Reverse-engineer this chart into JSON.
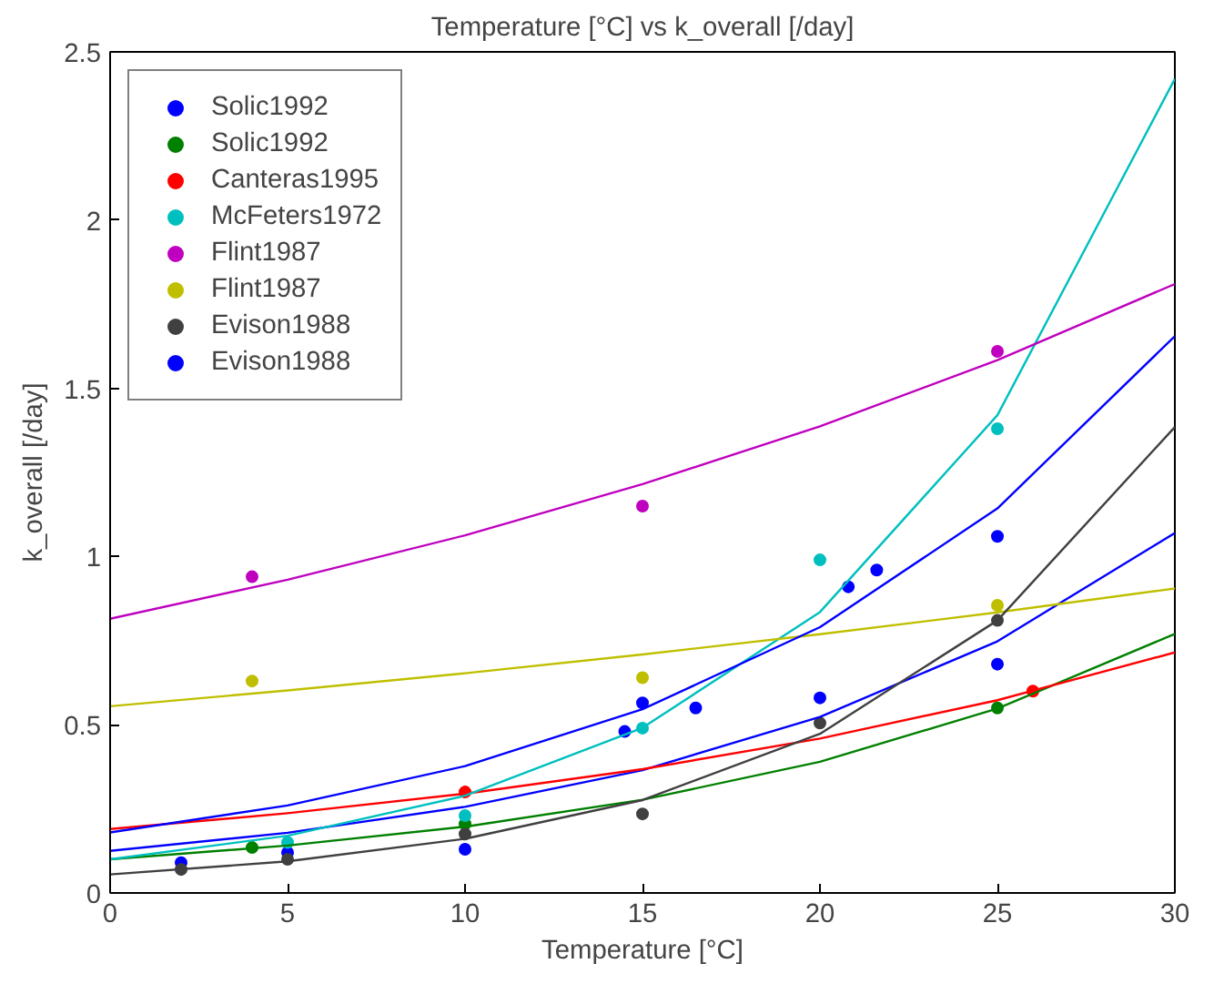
{
  "chart_data": {
    "type": "scatter",
    "title": "Temperature [°C] vs k_overall [/day]",
    "xlabel": "Temperature [°C]",
    "ylabel": "k_overall [/day]",
    "xlim": [
      0,
      30
    ],
    "ylim": [
      0,
      2.5
    ],
    "xticks": [
      0,
      5,
      10,
      15,
      20,
      25,
      30
    ],
    "yticks": [
      0,
      0.5,
      1,
      1.5,
      2,
      2.5
    ],
    "grid": false,
    "legend": "top left",
    "marker": "circle",
    "series": [
      {
        "name": "Solic1992",
        "color": "#0000ff",
        "x": [
          2,
          5,
          10,
          15,
          20,
          25
        ],
        "values": [
          0.09,
          0.12,
          0.13,
          0.565,
          0.58,
          0.68
        ]
      },
      {
        "name": "Solic1992",
        "color": "#008000",
        "x": [
          4,
          10,
          25
        ],
        "values": [
          0.135,
          0.205,
          0.55
        ]
      },
      {
        "name": "Canteras1995",
        "color": "#ff0000",
        "x": [
          10,
          26
        ],
        "values": [
          0.3,
          0.6
        ]
      },
      {
        "name": "McFeters1972",
        "color": "#00bfbf",
        "x": [
          5,
          10,
          15,
          20,
          25
        ],
        "values": [
          0.15,
          0.23,
          0.49,
          0.99,
          1.38
        ]
      },
      {
        "name": "Flint1987",
        "color": "#bf00bf",
        "x": [
          4,
          15,
          25
        ],
        "values": [
          0.94,
          1.15,
          1.61
        ]
      },
      {
        "name": "Flint1987",
        "color": "#bfbf00",
        "x": [
          4,
          15,
          25
        ],
        "values": [
          0.63,
          0.64,
          0.855
        ]
      },
      {
        "name": "Evison1988",
        "color": "#404040",
        "x": [
          2,
          5,
          10,
          15,
          20,
          25
        ],
        "values": [
          0.07,
          0.1,
          0.175,
          0.235,
          0.505,
          0.81
        ]
      },
      {
        "name": "Evison1988",
        "color": "#0000ff",
        "x": [
          14.5,
          16.5,
          20.8,
          21.6,
          25
        ],
        "values": [
          0.48,
          0.55,
          0.91,
          0.96,
          1.06
        ]
      },
      {
        "type": "line",
        "marker": "none",
        "color": "#0000ff",
        "x": [
          0,
          5,
          10,
          15,
          20,
          25,
          30
        ],
        "values": [
          0.125,
          0.179,
          0.256,
          0.365,
          0.523,
          0.748,
          1.07
        ]
      },
      {
        "type": "line",
        "marker": "none",
        "color": "#008000",
        "x": [
          0,
          5,
          10,
          15,
          20,
          25,
          30
        ],
        "values": [
          0.1,
          0.141,
          0.197,
          0.277,
          0.39,
          0.548,
          0.77
        ]
      },
      {
        "type": "line",
        "marker": "none",
        "color": "#ff0000",
        "x": [
          0,
          5,
          10,
          15,
          20,
          25,
          30
        ],
        "values": [
          0.19,
          0.237,
          0.295,
          0.368,
          0.459,
          0.573,
          0.715
        ]
      },
      {
        "type": "line",
        "marker": "none",
        "color": "#00bfbf",
        "x": [
          0,
          5,
          10,
          15,
          20,
          25,
          30
        ],
        "values": [
          0.1,
          0.17,
          0.289,
          0.491,
          0.835,
          1.42,
          2.42
        ]
      },
      {
        "type": "line",
        "marker": "none",
        "color": "#bf00bf",
        "x": [
          0,
          5,
          10,
          15,
          20,
          25,
          30
        ],
        "values": [
          0.815,
          0.931,
          1.063,
          1.215,
          1.387,
          1.584,
          1.81
        ]
      },
      {
        "type": "line",
        "marker": "none",
        "color": "#bfbf00",
        "x": [
          0,
          5,
          10,
          15,
          20,
          25,
          30
        ],
        "values": [
          0.555,
          0.602,
          0.653,
          0.709,
          0.769,
          0.834,
          0.905
        ]
      },
      {
        "type": "line",
        "marker": "none",
        "color": "#404040",
        "x": [
          0,
          5,
          10,
          15,
          20,
          25,
          30
        ],
        "values": [
          0.055,
          0.094,
          0.161,
          0.276,
          0.473,
          0.81,
          1.385
        ]
      },
      {
        "type": "line",
        "marker": "none",
        "color": "#0000ff",
        "x": [
          0,
          5,
          10,
          15,
          20,
          25,
          30
        ],
        "values": [
          0.18,
          0.26,
          0.377,
          0.546,
          0.79,
          1.143,
          1.655
        ]
      }
    ]
  }
}
